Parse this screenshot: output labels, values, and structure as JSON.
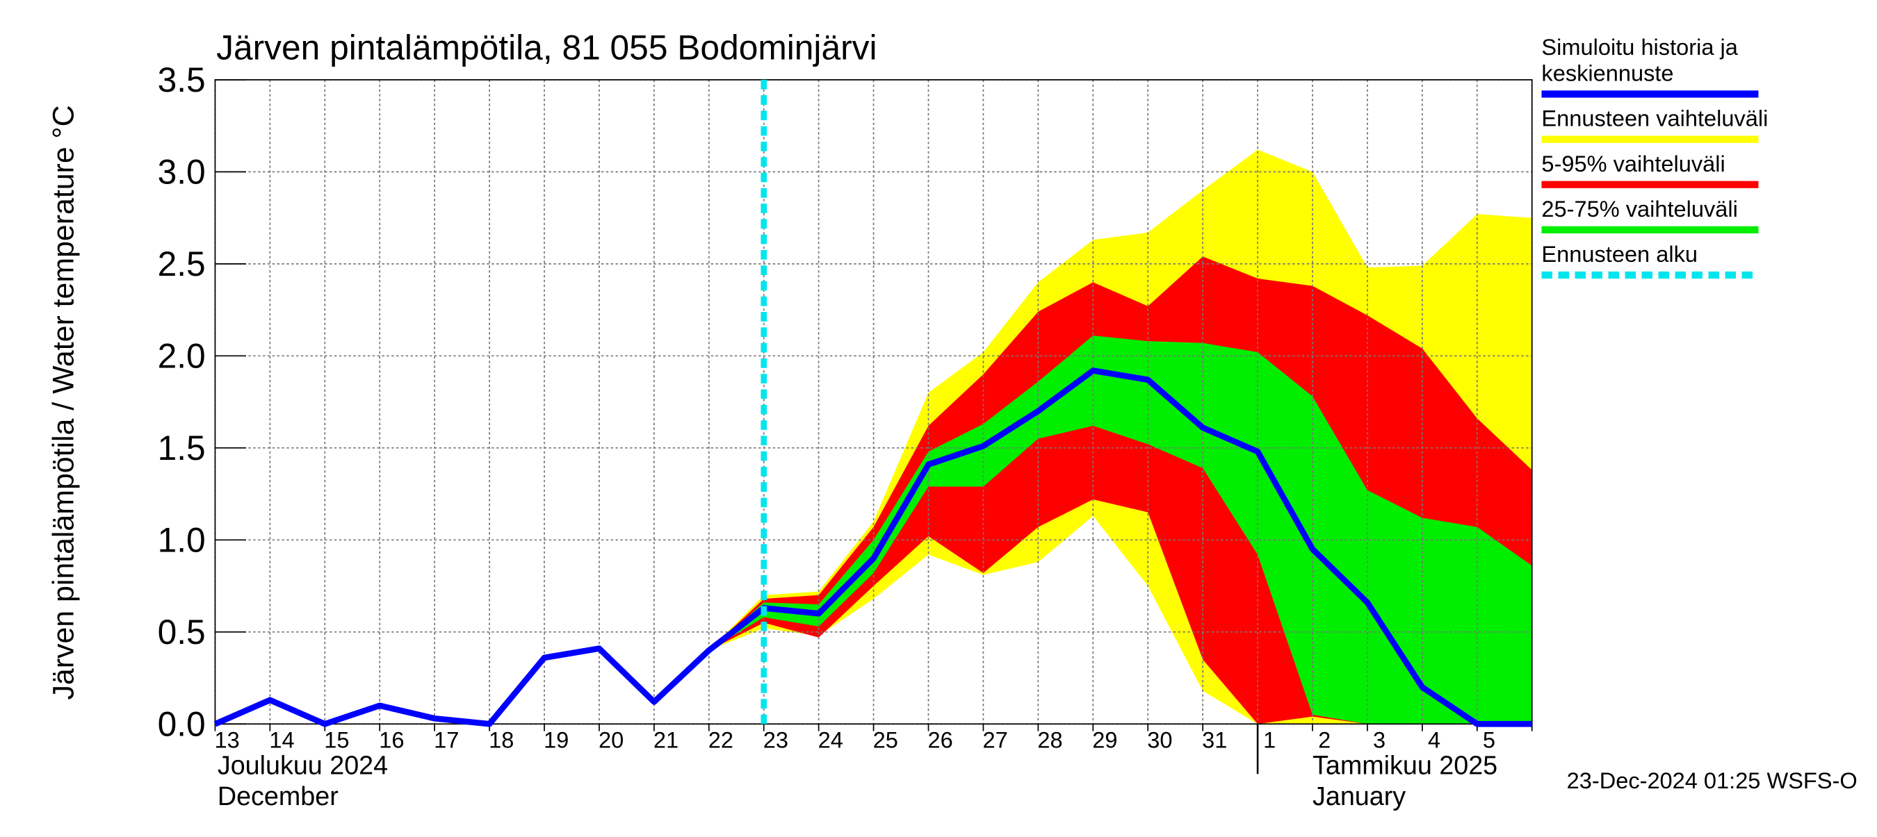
{
  "chart_data": {
    "type": "line",
    "title": "Järven pintalämpötila, 81 055 Bodominjärvi",
    "y_label": "Järven pintalämpötila / Water temperature °C",
    "footer": "23-Dec-2024 01:25 WSFS-O",
    "categories": [
      "13",
      "14",
      "15",
      "16",
      "17",
      "18",
      "19",
      "20",
      "21",
      "22",
      "23",
      "24",
      "25",
      "26",
      "27",
      "28",
      "29",
      "30",
      "31",
      "1",
      "2",
      "3",
      "4",
      "5",
      null
    ],
    "months": [
      {
        "label": "Joulukuu  2024",
        "label_en": "December",
        "start": "13"
      },
      {
        "label": "Tammikuu  2025",
        "label_en": "January",
        "start": "1"
      }
    ],
    "ylim": [
      0,
      3.5
    ],
    "yticks": [
      {
        "value": 0,
        "label": "0.0"
      },
      0.5,
      {
        "value": 1,
        "label": "1.0"
      },
      1.5,
      {
        "value": 2,
        "label": "2.0"
      },
      2.5,
      {
        "value": 3,
        "label": "3.0"
      },
      3.5
    ],
    "grid": true,
    "series": [
      {
        "name": "Simuloitu historia ja keskiennuste",
        "color": "#0000ff",
        "values": [
          0,
          0.13,
          0,
          0.1,
          0.03,
          0,
          0.36,
          0.41,
          0.12,
          0.4,
          0.63,
          0.6,
          0.9,
          1.41,
          1.51,
          1.7,
          1.92,
          1.87,
          1.61,
          1.48,
          0.95,
          0.66,
          0.2,
          0,
          0
        ]
      }
    ],
    "bands": [
      {
        "name": "Ennusteen vaihteluväli",
        "color": "#ffff00",
        "lower": [
          null,
          null,
          null,
          null,
          null,
          null,
          null,
          null,
          null,
          0.4,
          0.52,
          0.48,
          0.68,
          0.92,
          0.81,
          0.88,
          1.13,
          0.75,
          0.18,
          0,
          0,
          0,
          0,
          0,
          0
        ],
        "upper": [
          null,
          null,
          null,
          null,
          null,
          null,
          null,
          null,
          null,
          0.4,
          0.7,
          0.72,
          1.1,
          1.8,
          2.02,
          2.4,
          2.63,
          2.67,
          2.9,
          3.12,
          3.0,
          2.48,
          2.49,
          2.77,
          2.75
        ]
      },
      {
        "name": "5-95% vaihteluväli",
        "color": "#ff0000",
        "lower": [
          null,
          null,
          null,
          null,
          null,
          null,
          null,
          null,
          null,
          0.4,
          0.55,
          0.47,
          0.75,
          1.02,
          0.82,
          1.07,
          1.22,
          1.15,
          0.35,
          0,
          0.04,
          0,
          0,
          0,
          0
        ],
        "upper": [
          null,
          null,
          null,
          null,
          null,
          null,
          null,
          null,
          null,
          0.4,
          0.68,
          0.7,
          1.07,
          1.62,
          1.9,
          2.24,
          2.4,
          2.27,
          2.54,
          2.42,
          2.38,
          2.22,
          2.04,
          1.66,
          1.38
        ]
      },
      {
        "name": "25-75% vaihteluväli",
        "color": "#00ee00",
        "lower": [
          null,
          null,
          null,
          null,
          null,
          null,
          null,
          null,
          null,
          0.4,
          0.58,
          0.53,
          0.82,
          1.29,
          1.29,
          1.55,
          1.62,
          1.52,
          1.39,
          0.92,
          0.05,
          0,
          0,
          0,
          0
        ],
        "upper": [
          null,
          null,
          null,
          null,
          null,
          null,
          null,
          null,
          null,
          0.4,
          0.66,
          0.65,
          1.0,
          1.48,
          1.63,
          1.86,
          2.11,
          2.08,
          2.07,
          2.02,
          1.78,
          1.27,
          1.12,
          1.07,
          0.86
        ]
      }
    ],
    "forecast_start": {
      "name": "Ennusteen alku",
      "color": "#00e5ee",
      "category": "23"
    }
  }
}
